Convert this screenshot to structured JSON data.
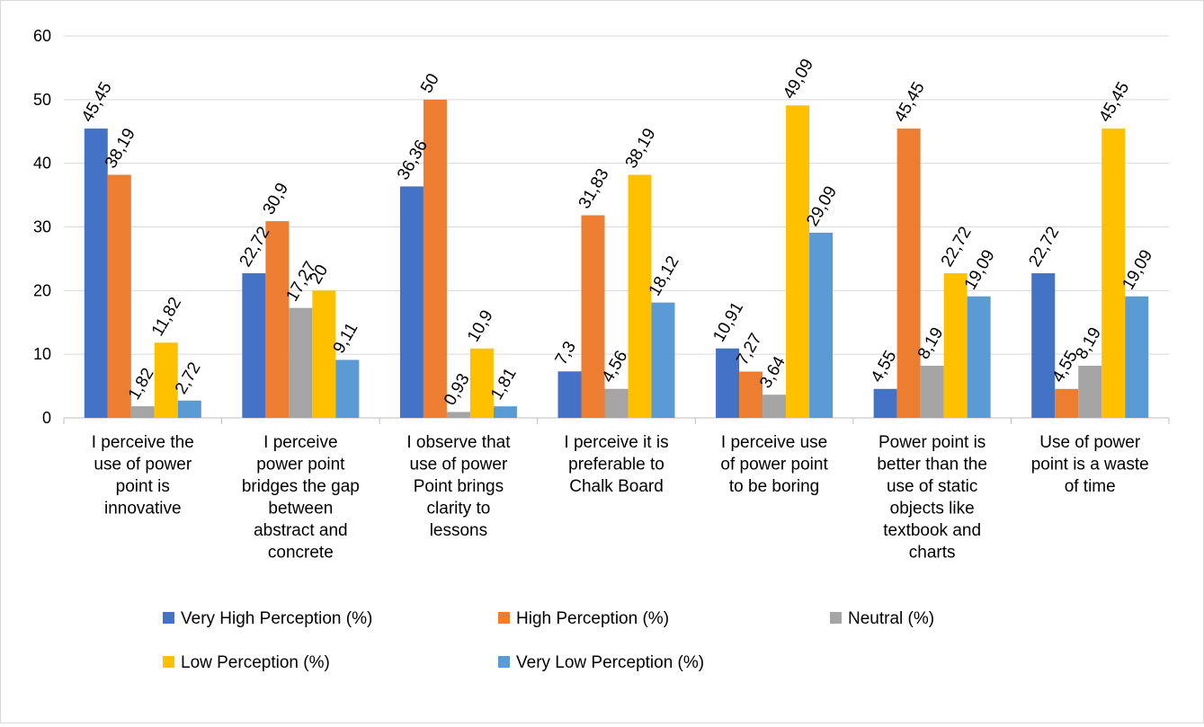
{
  "chart_data": {
    "type": "bar",
    "title": "",
    "xlabel": "",
    "ylabel": "",
    "ylim": [
      0,
      60
    ],
    "yticks": [
      0,
      10,
      20,
      30,
      40,
      50,
      60
    ],
    "grid": true,
    "legend_position": "bottom",
    "categories": [
      [
        "I perceive the",
        "use of power",
        "point is",
        "innovative"
      ],
      [
        "I perceive",
        "power point",
        "bridges the gap",
        "between",
        "abstract and",
        "concrete"
      ],
      [
        "I observe that",
        "use of power",
        "Point brings",
        "clarity to",
        "lessons"
      ],
      [
        "I perceive it is",
        "preferable to",
        "Chalk Board"
      ],
      [
        "I perceive use",
        "of power point",
        "to be boring"
      ],
      [
        "Power point is",
        "better than the",
        "use of static",
        "objects like",
        "textbook and",
        "charts"
      ],
      [
        "Use of power",
        "point is a waste",
        "of time"
      ]
    ],
    "series": [
      {
        "name": "Very High Perception (%)",
        "color": "#4472C4",
        "values": [
          45.45,
          22.72,
          36.36,
          7.3,
          10.91,
          4.55,
          22.72
        ],
        "labels": [
          "45,45",
          "22,72",
          "36,36",
          "7,3",
          "10,91",
          "4,55",
          "22,72"
        ]
      },
      {
        "name": "High Perception (%)",
        "color": "#ED7D31",
        "values": [
          38.19,
          30.9,
          50,
          31.83,
          7.27,
          45.45,
          4.55
        ],
        "labels": [
          "38,19",
          "30,9",
          "50",
          "31,83",
          "7,27",
          "45,45",
          "4,55"
        ]
      },
      {
        "name": "Neutral (%)",
        "color": "#A5A5A5",
        "values": [
          1.82,
          17.27,
          0.93,
          4.56,
          3.64,
          8.19,
          8.19
        ],
        "labels": [
          "1,82",
          "17,27",
          "0,93",
          "4,56",
          "3,64",
          "8,19",
          "8,19"
        ]
      },
      {
        "name": "Low Perception (%)",
        "color": "#FFC000",
        "values": [
          11.82,
          20,
          10.9,
          38.19,
          49.09,
          22.72,
          45.45
        ],
        "labels": [
          "11,82",
          "20",
          "10,9",
          "38,19",
          "49,09",
          "22,72",
          "45,45"
        ]
      },
      {
        "name": "Very Low Perception (%)",
        "color": "#5B9BD5",
        "values": [
          2.72,
          9.11,
          1.81,
          18.12,
          29.09,
          19.09,
          19.09
        ],
        "labels": [
          "2,72",
          "9,11",
          "1,81",
          "18,12",
          "29,09",
          "19,09",
          "19,09"
        ]
      }
    ]
  }
}
